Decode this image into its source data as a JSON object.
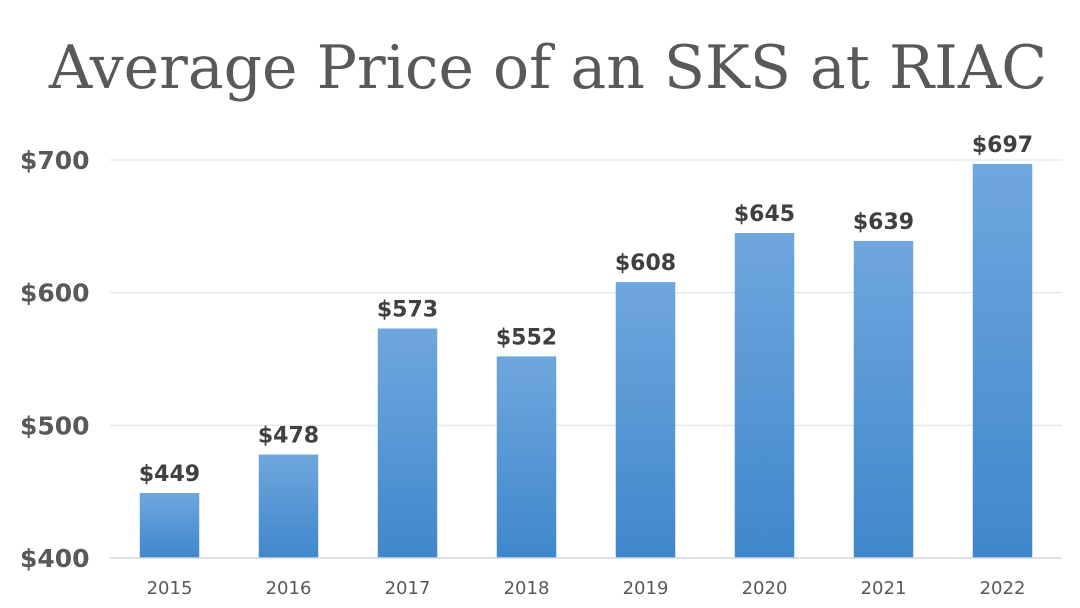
{
  "chart_data": {
    "type": "bar",
    "title": "Average Price of an SKS at RIAC",
    "xlabel": "",
    "ylabel": "",
    "categories": [
      "2015",
      "2016",
      "2017",
      "2018",
      "2019",
      "2020",
      "2021",
      "2022"
    ],
    "values": [
      449,
      478,
      573,
      552,
      608,
      645,
      639,
      697
    ],
    "data_labels": [
      "$449",
      "$478",
      "$573",
      "$552",
      "$608",
      "$645",
      "$639",
      "$697"
    ],
    "ylim": [
      400,
      700
    ],
    "yticks": [
      400,
      500,
      600,
      700
    ],
    "ytick_labels": [
      "$400",
      "$500",
      "$600",
      "$700"
    ],
    "grid": true,
    "legend": "none",
    "colors": {
      "bar_top": "#6fa7dd",
      "bar_bottom": "#3f87cc",
      "gridline": "#d9e6f0",
      "text": "#595959",
      "data_label": "#404040"
    }
  }
}
